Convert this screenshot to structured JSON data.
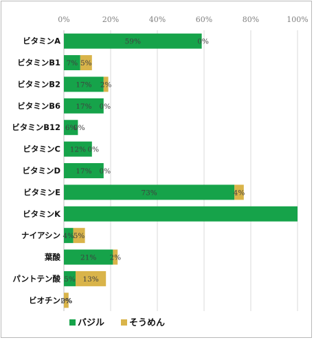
{
  "chart_data": {
    "type": "bar",
    "orientation": "horizontal",
    "stacked": true,
    "categories": [
      "ビタミンA",
      "ビタミンB1",
      "ビタミンB2",
      "ビタミンB6",
      "ビタミンB12",
      "ビタミンC",
      "ビタミンD",
      "ビタミンE",
      "ビタミンK",
      "ナイアシン",
      "葉酸",
      "パントテン酸",
      "ビオチン"
    ],
    "series": [
      {
        "name": "バジル",
        "color": "#16a34a",
        "values": [
          59,
          7,
          17,
          17,
          6,
          12,
          17,
          73,
          100,
          4,
          21,
          5,
          0
        ],
        "labels": [
          "59%",
          "7%",
          "17%",
          "17%",
          "6%",
          "12%",
          "17%",
          "73%",
          "",
          "4%",
          "21%",
          "5%",
          "0%"
        ]
      },
      {
        "name": "そうめん",
        "color": "#d9b44a",
        "values": [
          0,
          5,
          2,
          0,
          0,
          0,
          0,
          4,
          0,
          5,
          2,
          13,
          2
        ],
        "labels": [
          "0%",
          "5%",
          "2%",
          "0%",
          "0%",
          "0%",
          "0%",
          "4%",
          "",
          "5%",
          "2%",
          "13%",
          "2%"
        ]
      }
    ],
    "xlim": [
      0,
      100
    ],
    "xticks": [
      "0%",
      "20%",
      "40%",
      "60%",
      "80%",
      "100%"
    ],
    "grid": true,
    "legend_position": "bottom"
  }
}
